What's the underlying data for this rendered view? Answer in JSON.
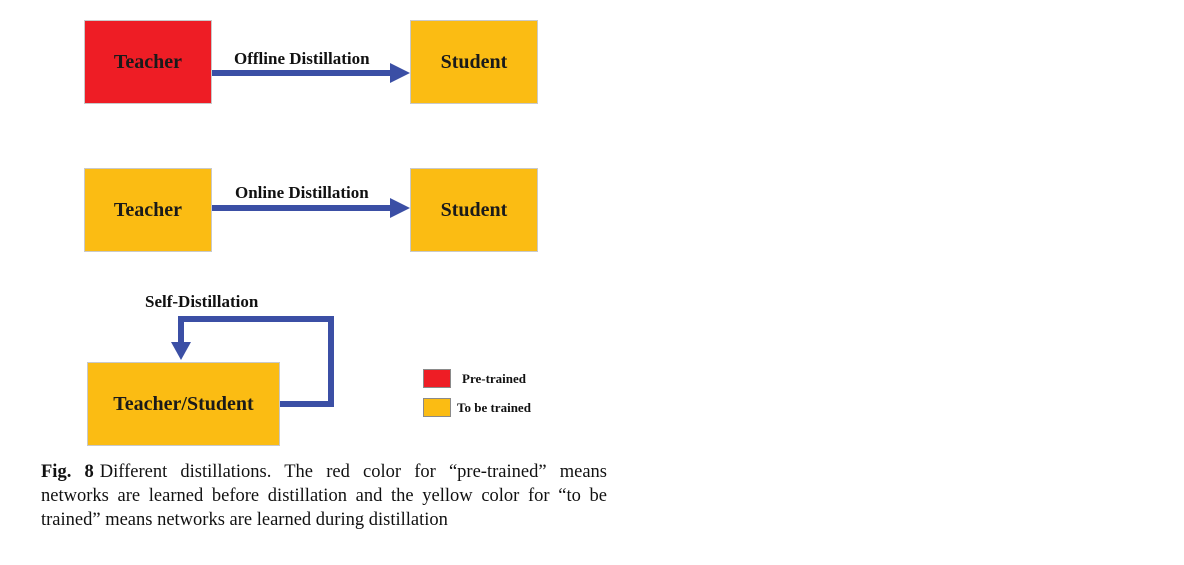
{
  "colors": {
    "pretrained": "#ee1d25",
    "to_be_trained": "#fbbc13",
    "arrow": "#3b4fa5"
  },
  "row1": {
    "teacher": "Teacher",
    "arrow_label": "Offline Distillation",
    "student": "Student"
  },
  "row2": {
    "teacher": "Teacher",
    "arrow_label": "Online Distillation",
    "student": "Student"
  },
  "row3": {
    "loop_label": "Self-Distillation",
    "node": "Teacher/Student"
  },
  "legend": {
    "pretrained": "Pre-trained",
    "to_be_trained": "To be trained"
  },
  "caption": {
    "tag": "Fig. 8",
    "text": "Different distillations. The red color for “pre-trained” means networks are learned before distillation and the yellow color for “to be trained” means networks are learned during distillation"
  }
}
